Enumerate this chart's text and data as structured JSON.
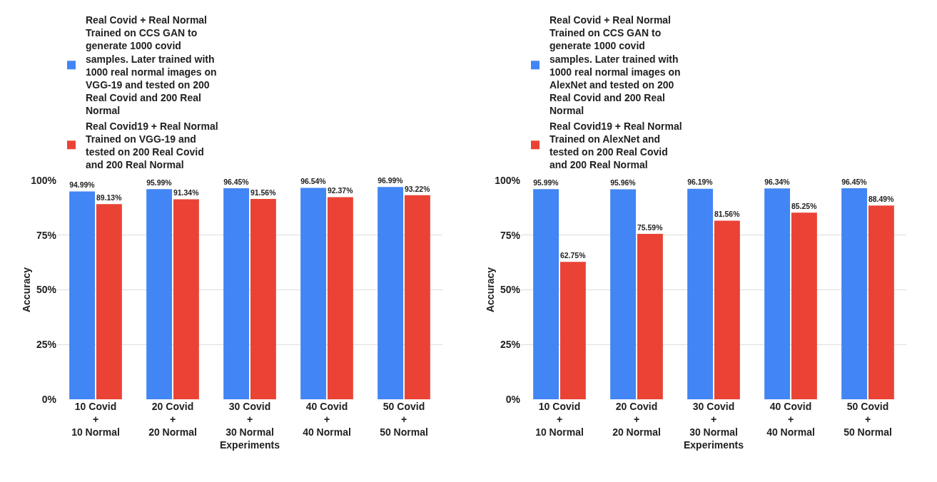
{
  "chart_data": [
    {
      "type": "bar",
      "xlabel": "Experiments",
      "ylabel": "Accuracy",
      "categories": [
        "10 Covid\n+\n10 Normal",
        "20 Covid\n+\n20 Normal",
        "30 Covid\n+\n30 Normal",
        "40 Covid\n+\n40 Normal",
        "50 Covid\n+\n50 Normal"
      ],
      "series": [
        {
          "name": "Real Covid + Real Normal Trained on CCS GAN to generate 1000 covid samples. Later trained with 1000 real normal images on VGG-19  and tested on 200 Real Covid and 200 Real Normal",
          "color": "#4285f4",
          "values": [
            94.99,
            95.99,
            96.45,
            96.54,
            96.99
          ],
          "value_labels": [
            "94.99%",
            "95.99%",
            "96.45%",
            "96.54%",
            "96.99%"
          ]
        },
        {
          "name": "Real Covid19 + Real Normal Trained on VGG-19  and tested on 200 Real Covid and 200 Real Normal",
          "color": "#ea4335",
          "values": [
            89.13,
            91.34,
            91.56,
            92.37,
            93.22
          ],
          "value_labels": [
            "89.13%",
            "91.34%",
            "91.56%",
            "92.37%",
            "93.22%"
          ]
        }
      ],
      "ylim": [
        0,
        100
      ],
      "yticks": [
        {
          "value": 0,
          "label": "0%"
        },
        {
          "value": 25,
          "label": "25%"
        },
        {
          "value": 50,
          "label": "50%"
        },
        {
          "value": 75,
          "label": "75%"
        },
        {
          "value": 100,
          "label": "100%"
        }
      ],
      "grid": "y",
      "legend": "top"
    },
    {
      "type": "bar",
      "xlabel": "Experiments",
      "ylabel": "Accuracy",
      "categories": [
        "10 Covid\n+\n10 Normal",
        "20 Covid\n+\n20 Normal",
        "30 Covid\n+\n30 Normal",
        "40 Covid\n+\n40 Normal",
        "50 Covid\n+\n50 Normal"
      ],
      "series": [
        {
          "name": "Real Covid + Real Normal Trained on CCS GAN to generate 1000 covid samples. Later trained with 1000 real normal images on AlexNet and tested on 200 Real Covid and 200 Real Normal",
          "color": "#4285f4",
          "values": [
            95.99,
            95.96,
            96.19,
            96.34,
            96.45
          ],
          "value_labels": [
            "95.99%",
            "95.96%",
            "96.19%",
            "96.34%",
            "96.45%"
          ]
        },
        {
          "name": "Real Covid19 + Real Normal Trained on AlexNet and tested on 200 Real Covid and 200 Real Normal",
          "color": "#ea4335",
          "values": [
            62.75,
            75.59,
            81.56,
            85.25,
            88.49
          ],
          "value_labels": [
            "62.75%",
            "75.59%",
            "81.56%",
            "85.25%",
            "88.49%"
          ]
        }
      ],
      "ylim": [
        0,
        100
      ],
      "yticks": [
        {
          "value": 0,
          "label": "0%"
        },
        {
          "value": 25,
          "label": "25%"
        },
        {
          "value": 50,
          "label": "50%"
        },
        {
          "value": 75,
          "label": "75%"
        },
        {
          "value": 100,
          "label": "100%"
        }
      ],
      "grid": "y",
      "legend": "top"
    }
  ]
}
